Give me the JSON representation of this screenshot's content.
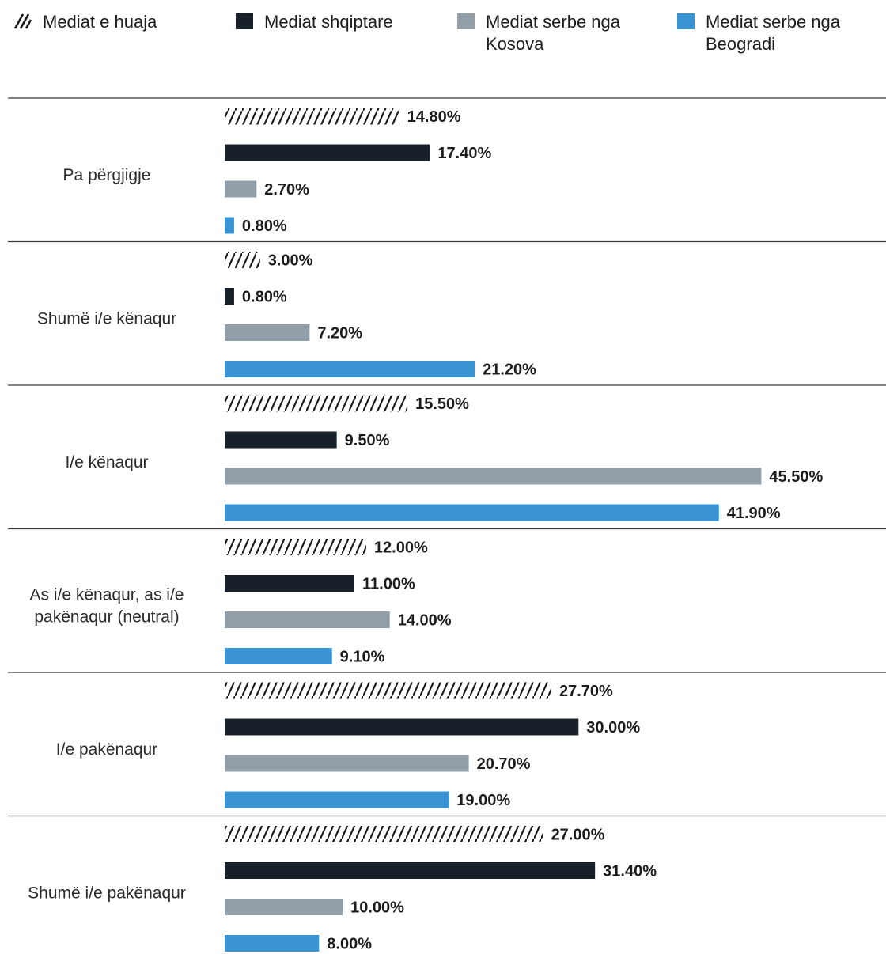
{
  "chart_data": {
    "type": "bar",
    "orientation": "horizontal",
    "title": "",
    "xlabel": "",
    "ylabel": "",
    "xlim": [
      0,
      50
    ],
    "grid": false,
    "legend_position": "top",
    "categories": [
      "Pa përgjigje",
      "Shumë i/e kënaqur",
      "I/e kënaqur",
      "As i/e kënaqur, as i/e pakënaqur (neutral)",
      "I/e pakënaqur",
      "Shumë i/e pakënaqur"
    ],
    "series": [
      {
        "name": "Mediat e huaja",
        "color": "#1a1a1a",
        "pattern": "hatch",
        "values": [
          14.8,
          3.0,
          15.5,
          12.0,
          27.7,
          27.0
        ],
        "labels": [
          "14.80%",
          "3.00%",
          "15.50%",
          "12.00%",
          "27.70%",
          "27.00%"
        ]
      },
      {
        "name": "Mediat shqiptare",
        "color": "#18202a",
        "pattern": "solid",
        "values": [
          17.4,
          0.8,
          9.5,
          11.0,
          30.0,
          31.4
        ],
        "labels": [
          "17.40%",
          "0.80%",
          "9.50%",
          "11.00%",
          "30.00%",
          "31.40%"
        ]
      },
      {
        "name": "Mediat serbe nga Kosova",
        "color": "#929fa8",
        "pattern": "solid",
        "values": [
          2.7,
          7.2,
          45.5,
          14.0,
          20.7,
          10.0
        ],
        "labels": [
          "2.70%",
          "7.20%",
          "45.50%",
          "14.00%",
          "20.70%",
          "10.00%"
        ]
      },
      {
        "name": "Mediat serbe nga Beogradi",
        "color": "#3a94d4",
        "pattern": "solid",
        "values": [
          0.8,
          21.2,
          41.9,
          9.1,
          19.0,
          8.0
        ],
        "labels": [
          "0.80%",
          "21.20%",
          "41.90%",
          "9.10%",
          "19.00%",
          "8.00%"
        ]
      }
    ]
  }
}
